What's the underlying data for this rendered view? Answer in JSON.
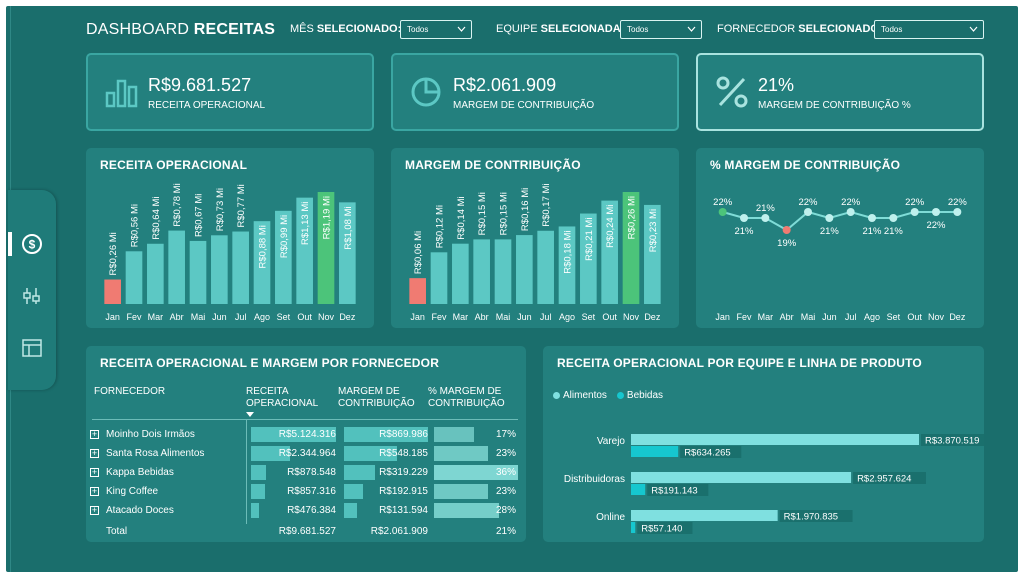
{
  "header": {
    "title_light": "DASHBOARD ",
    "title_bold": "RECEITAS",
    "filters": [
      {
        "label_light": "MÊS ",
        "label_bold": "SELECIONADO:",
        "value": "Todos"
      },
      {
        "label_light": "EQUIPE ",
        "label_bold": "SELECIONADA:",
        "value": "Todos"
      },
      {
        "label_light": "FORNECEDOR ",
        "label_bold": "SELECIONADO:",
        "value": "Todos"
      }
    ]
  },
  "sidebar": {
    "items": [
      {
        "icon": "dollar-circle-icon"
      },
      {
        "icon": "filter-sliders-icon"
      },
      {
        "icon": "table-icon"
      }
    ]
  },
  "kpis": [
    {
      "value": "R$9.681.527",
      "label": "RECEITA OPERACIONAL",
      "icon": "bar-chart-icon"
    },
    {
      "value": "R$2.061.909",
      "label": "MARGEM DE CONTRIBUIÇÃO",
      "icon": "pie-chart-icon"
    },
    {
      "value": "21%",
      "label": "MARGEM DE CONTRIBUIÇÃO %",
      "icon": "percent-icon"
    }
  ],
  "panels": {
    "receita": "RECEITA OPERACIONAL",
    "margem": "MARGEM DE CONTRIBUIÇÃO",
    "pct": "% MARGEM DE CONTRIBUIÇÃO",
    "fornecedor": "RECEITA OPERACIONAL E MARGEM POR FORNECEDOR",
    "equipe": "RECEITA OPERACIONAL POR EQUIPE E LINHA DE PRODUTO"
  },
  "colors": {
    "bar": "#5cc8c4",
    "min": "#f07b72",
    "max": "#4cc47a",
    "line": "#7fdcd7",
    "alimentos": "#7fe0e0",
    "bebidas": "#16c7cf",
    "table_bar": "#52c1bd",
    "table_pct": "#7ed6d2"
  },
  "chart_data": [
    {
      "type": "bar",
      "title": "RECEITA OPERACIONAL",
      "categories": [
        "Jan",
        "Fev",
        "Mar",
        "Abr",
        "Mai",
        "Jun",
        "Jul",
        "Ago",
        "Set",
        "Out",
        "Nov",
        "Dez"
      ],
      "values": [
        0.26,
        0.56,
        0.64,
        0.78,
        0.67,
        0.73,
        0.77,
        0.88,
        0.99,
        1.13,
        1.19,
        1.08
      ],
      "labels": [
        "R$0,26 Mi",
        "R$0,56 Mi",
        "R$0,64 Mi",
        "R$0,78 Mi",
        "R$0,67 Mi",
        "R$0,73 Mi",
        "R$0,77 Mi",
        "R$0,88 Mi",
        "R$0,99 Mi",
        "R$1,13 Mi",
        "R$1,19 Mi",
        "R$1,08 Mi"
      ],
      "ylim": [
        0,
        1.19
      ]
    },
    {
      "type": "bar",
      "title": "MARGEM DE CONTRIBUIÇÃO",
      "categories": [
        "Jan",
        "Fev",
        "Mar",
        "Abr",
        "Mai",
        "Jun",
        "Jul",
        "Ago",
        "Set",
        "Out",
        "Nov",
        "Dez"
      ],
      "values": [
        0.06,
        0.12,
        0.14,
        0.15,
        0.15,
        0.16,
        0.17,
        0.18,
        0.21,
        0.24,
        0.26,
        0.23
      ],
      "labels": [
        "R$0,06 Mi",
        "R$0,12 Mi",
        "R$0,14 Mi",
        "R$0,15 Mi",
        "R$0,15 Mi",
        "R$0,16 Mi",
        "R$0,17 Mi",
        "R$0,18 Mi",
        "R$0,21 Mi",
        "R$0,24 Mi",
        "R$0,26 Mi",
        "R$0,23 Mi"
      ],
      "ylim": [
        0,
        0.26
      ]
    },
    {
      "type": "line",
      "title": "% MARGEM DE CONTRIBUIÇÃO",
      "categories": [
        "Jan",
        "Fev",
        "Mar",
        "Abr",
        "Mai",
        "Jun",
        "Jul",
        "Ago",
        "Set",
        "Out",
        "Nov",
        "Dez"
      ],
      "values": [
        22,
        21,
        21,
        19,
        22,
        21,
        22,
        21,
        21,
        22,
        22,
        22
      ],
      "labels": [
        "22%",
        "21%",
        "21%",
        "19%",
        "22%",
        "21%",
        "22%",
        "21%",
        "21%",
        "22%",
        "22%",
        "22%"
      ],
      "label_above": [
        true,
        false,
        true,
        false,
        true,
        false,
        true,
        false,
        false,
        true,
        false,
        true
      ]
    },
    {
      "type": "table",
      "title": "RECEITA OPERACIONAL E MARGEM POR FORNECEDOR",
      "columns": [
        "FORNECEDOR",
        "RECEITA OPERACIONAL",
        "MARGEM DE CONTRIBUIÇÃO",
        "% MARGEM DE CONTRIBUIÇÃO"
      ],
      "rows": [
        {
          "name": "Moinho Dois Irmãos",
          "receita": 5124316,
          "receita_label": "R$5.124.316",
          "margem": 869986,
          "margem_label": "R$869.986",
          "pct": 17,
          "pct_label": "17%"
        },
        {
          "name": "Santa Rosa Alimentos",
          "receita": 2344964,
          "receita_label": "R$2.344.964",
          "margem": 548185,
          "margem_label": "R$548.185",
          "pct": 23,
          "pct_label": "23%"
        },
        {
          "name": "Kappa Bebidas",
          "receita": 878548,
          "receita_label": "R$878.548",
          "margem": 319229,
          "margem_label": "R$319.229",
          "pct": 36,
          "pct_label": "36%"
        },
        {
          "name": "King Coffee",
          "receita": 857316,
          "receita_label": "R$857.316",
          "margem": 192915,
          "margem_label": "R$192.915",
          "pct": 23,
          "pct_label": "23%"
        },
        {
          "name": "Atacado Doces",
          "receita": 476384,
          "receita_label": "R$476.384",
          "margem": 131594,
          "margem_label": "R$131.594",
          "pct": 28,
          "pct_label": "28%"
        }
      ],
      "total": {
        "name": "Total",
        "receita_label": "R$9.681.527",
        "margem_label": "R$2.061.909",
        "pct_label": "21%"
      }
    },
    {
      "type": "bar",
      "title": "RECEITA OPERACIONAL POR EQUIPE E LINHA DE PRODUTO",
      "categories": [
        "Varejo",
        "Distribuidoras",
        "Online"
      ],
      "series": [
        {
          "name": "Alimentos",
          "values": [
            3870519,
            2957624,
            1970835
          ],
          "labels": [
            "R$3.870.519",
            "R$2.957.624",
            "R$1.970.835"
          ]
        },
        {
          "name": "Bebidas",
          "values": [
            634265,
            191143,
            57140
          ],
          "labels": [
            "R$634.265",
            "R$191.143",
            "R$57.140"
          ]
        }
      ],
      "legend_position": "top-left"
    }
  ]
}
